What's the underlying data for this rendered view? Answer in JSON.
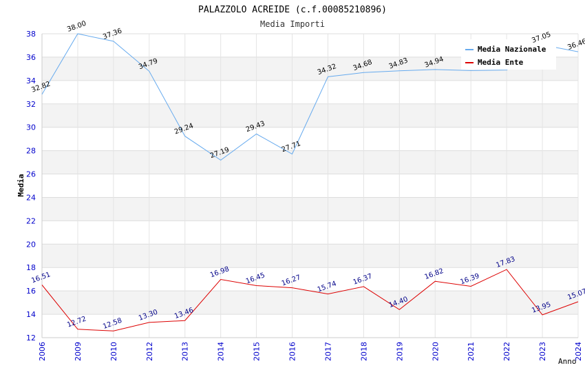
{
  "chart_data": {
    "type": "line",
    "title": "PALAZZOLO ACREIDE (c.f.00085210896)",
    "subtitle": "Media Importi",
    "xlabel": "Anno",
    "ylabel": "Media",
    "categories": [
      "2006",
      "2009",
      "2010",
      "2012",
      "2013",
      "2014",
      "2015",
      "2016",
      "2017",
      "2018",
      "2019",
      "2020",
      "2021",
      "2022",
      "2023",
      "2024"
    ],
    "ylim": [
      12,
      38
    ],
    "yticks": [
      12,
      14,
      16,
      18,
      20,
      22,
      24,
      26,
      28,
      30,
      32,
      34,
      36,
      38
    ],
    "ytick_labels": [
      "12",
      "14",
      "16",
      "18",
      "20",
      "22",
      "24",
      "26",
      "28",
      "30",
      "32",
      "34",
      "36",
      "38"
    ],
    "grid": true,
    "legend_position": "top-right",
    "series": [
      {
        "name": "Media Nazionale",
        "color": "#66aaee",
        "label_color": "#000000",
        "values": [
          32.82,
          38.0,
          37.36,
          34.79,
          29.24,
          27.19,
          29.43,
          27.71,
          34.32,
          34.68,
          34.83,
          34.94,
          34.85,
          34.9,
          37.05,
          36.46
        ],
        "labels": [
          "32.82",
          "38.00",
          "37.36",
          "34.79",
          "29.24",
          "27.19",
          "29.43",
          "27.71",
          "34.32",
          "34.68",
          "34.83",
          "34.94",
          "",
          "",
          "37.05",
          "36.46"
        ]
      },
      {
        "name": "Media Ente",
        "color": "#dd0000",
        "label_color": "#000088",
        "values": [
          16.51,
          12.72,
          12.58,
          13.3,
          13.46,
          16.98,
          16.45,
          16.27,
          15.74,
          16.37,
          14.4,
          16.82,
          16.39,
          17.83,
          13.95,
          15.07
        ],
        "labels": [
          "16.51",
          "12.72",
          "12.58",
          "13.30",
          "13.46",
          "16.98",
          "16.45",
          "16.27",
          "15.74",
          "16.37",
          "14.40",
          "16.82",
          "16.39",
          "17.83",
          "13.95",
          "15.07"
        ]
      }
    ]
  }
}
